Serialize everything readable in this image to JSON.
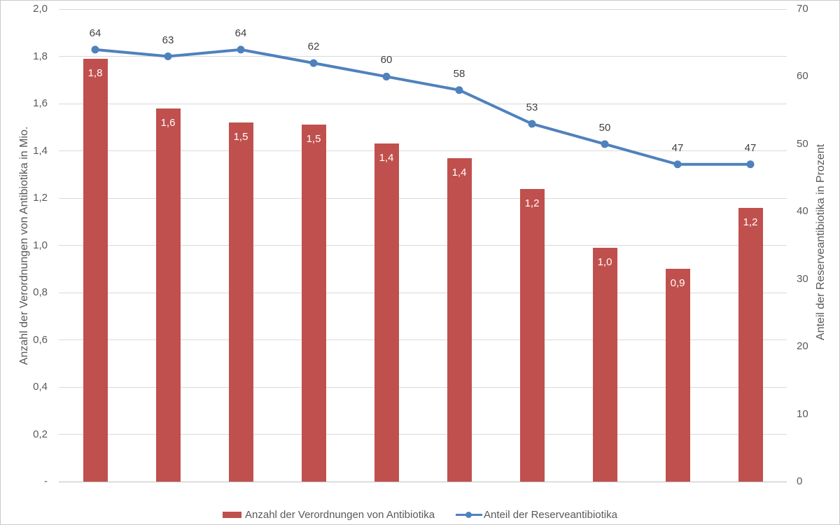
{
  "chart_data": {
    "type": "combo",
    "n_categories": 10,
    "x_tick_labels": [],
    "series": [
      {
        "name": "Anzahl der Verordnungen von Antibiotika",
        "type": "bar",
        "axis": "left",
        "color": "#C0504D",
        "values": [
          1.8,
          1.6,
          1.5,
          1.5,
          1.4,
          1.4,
          1.2,
          1.0,
          0.9,
          1.2
        ],
        "labels": [
          "1,8",
          "1,6",
          "1,5",
          "1,5",
          "1,4",
          "1,4",
          "1,2",
          "1,0",
          "0,9",
          "1,2"
        ],
        "values_precise": [
          1.79,
          1.58,
          1.52,
          1.51,
          1.43,
          1.37,
          1.24,
          0.99,
          0.9,
          1.16
        ]
      },
      {
        "name": "Anteil der Reserveantibiotika",
        "type": "line",
        "axis": "right",
        "color": "#4F81BD",
        "values": [
          64,
          63,
          64,
          62,
          60,
          58,
          53,
          50,
          47,
          47
        ],
        "labels": [
          "64",
          "63",
          "64",
          "62",
          "60",
          "58",
          "53",
          "50",
          "47",
          "47"
        ]
      }
    ],
    "left_axis": {
      "title": "Anzahl der Verordnungen von Antibiotika in Mio.",
      "min": 0,
      "max": 2.0,
      "tick_labels": [
        "2,0",
        "1,8",
        "1,6",
        "1,4",
        "1,2",
        "1,0",
        "0,8",
        "0,6",
        "0,4",
        "0,2",
        "-"
      ]
    },
    "right_axis": {
      "title": "Anteil der Reserveantibiotika in Prozent",
      "min": 0,
      "max": 70,
      "tick_labels": [
        "70",
        "60",
        "50",
        "40",
        "30",
        "20",
        "10",
        "0"
      ]
    },
    "legend": {
      "position": "bottom"
    },
    "grid": {
      "horizontal": true,
      "color": "#D9D9D9"
    },
    "styles": {
      "background": "#FFFFFF",
      "tick_color": "#595959",
      "data_label_color": "#404040",
      "bar_label_color": "#FFFFFF",
      "axis_line_color": "#BFBFBF"
    }
  }
}
